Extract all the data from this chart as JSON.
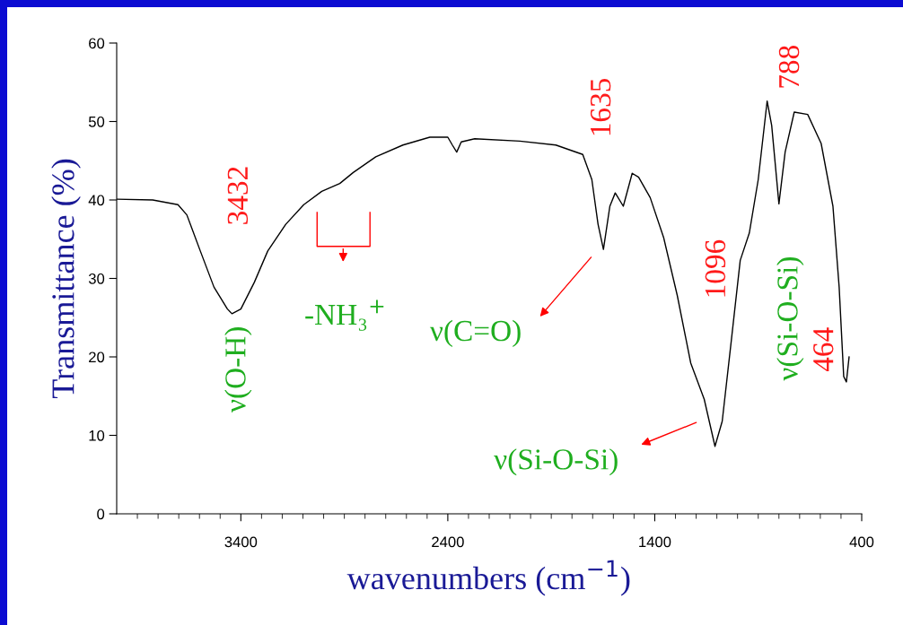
{
  "chart_data": {
    "type": "line",
    "xlabel": "wavenumbers (cm$^{−1}$)",
    "ylabel": "Transmittance (%)",
    "series": [
      {
        "color": "#000000",
        "x": [
          4000,
          3826,
          3704,
          3661,
          3596,
          3530,
          3465,
          3443,
          3400,
          3335,
          3270,
          3183,
          3096,
          3009,
          2922,
          2857,
          2748,
          2617,
          2487,
          2400,
          2378,
          2357,
          2335,
          2270,
          2052,
          1878,
          1748,
          1704,
          1674,
          1648,
          1617,
          1591,
          1552,
          1509,
          1478,
          1422,
          1357,
          1291,
          1226,
          1161,
          1109,
          1074,
          1030,
          987,
          943,
          900,
          857,
          835,
          800,
          770,
          726,
          661,
          596,
          539,
          509,
          487,
          474,
          461
        ],
        "values": [
          40.1,
          40.0,
          39.4,
          38.1,
          33.5,
          28.9,
          26.1,
          25.5,
          26.1,
          29.5,
          33.5,
          36.9,
          39.4,
          41.1,
          42.1,
          43.5,
          45.5,
          47.0,
          48.0,
          48.0,
          47.0,
          46.1,
          47.4,
          47.8,
          47.5,
          47.0,
          45.8,
          42.6,
          36.9,
          33.7,
          39.2,
          40.9,
          39.2,
          43.4,
          42.9,
          40.3,
          35.2,
          27.8,
          19.2,
          14.6,
          8.6,
          11.8,
          22.1,
          32.3,
          35.8,
          42.6,
          52.6,
          49.5,
          39.5,
          46.1,
          51.2,
          50.9,
          47.2,
          39.2,
          28.9,
          17.5,
          16.8,
          20.0
        ]
      }
    ],
    "xlim": [
      4000,
      400
    ],
    "xticks": [
      {
        "value": 3900,
        "label": null
      },
      {
        "value": 3800,
        "label": null
      },
      {
        "value": 3700,
        "label": null
      },
      {
        "value": 3600,
        "label": null
      },
      {
        "value": 3500,
        "label": null
      },
      3400,
      {
        "value": 3300,
        "label": null
      },
      {
        "value": 3200,
        "label": null
      },
      {
        "value": 3100,
        "label": null
      },
      {
        "value": 3000,
        "label": null
      },
      {
        "value": 2900,
        "label": null
      },
      {
        "value": 2800,
        "label": null
      },
      {
        "value": 2700,
        "label": null
      },
      {
        "value": 2600,
        "label": null
      },
      {
        "value": 2500,
        "label": null
      },
      2400,
      {
        "value": 2300,
        "label": null
      },
      {
        "value": 2200,
        "label": null
      },
      {
        "value": 2100,
        "label": null
      },
      {
        "value": 2000,
        "label": null
      },
      {
        "value": 1900,
        "label": null
      },
      {
        "value": 1800,
        "label": null
      },
      {
        "value": 1700,
        "label": null
      },
      {
        "value": 1600,
        "label": null
      },
      {
        "value": 1500,
        "label": null
      },
      1400,
      {
        "value": 1300,
        "label": null
      },
      {
        "value": 1200,
        "label": null
      },
      {
        "value": 1100,
        "label": null
      },
      {
        "value": 1000,
        "label": null
      },
      {
        "value": 900,
        "label": null
      },
      {
        "value": 800,
        "label": null
      },
      {
        "value": 700,
        "label": null
      },
      {
        "value": 600,
        "label": null
      },
      {
        "value": 500,
        "label": null
      },
      400
    ],
    "ylim": [
      0,
      60
    ],
    "yticks": [
      0,
      10,
      20,
      30,
      40,
      50,
      60
    ],
    "grid": false,
    "legend": false,
    "marker": "none",
    "line_style": "solid",
    "annotations": [
      "3432",
      "ν(O-H)",
      "-NH₃$^{+}$",
      "ν(C=O)",
      "1635",
      "1096",
      "ν(Si-O-Si)",
      "788",
      "ν(Si-O-Si)",
      "464"
    ]
  }
}
